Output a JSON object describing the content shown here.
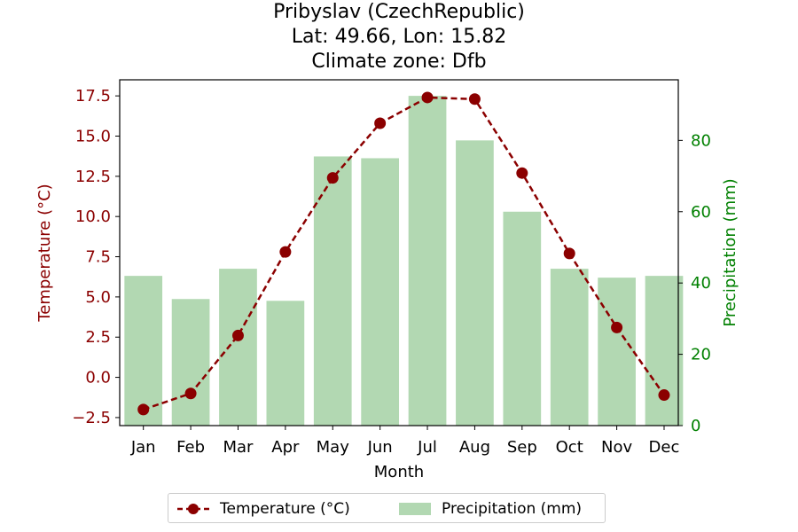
{
  "chart_data": {
    "type": "bar",
    "title_lines": [
      "Pribyslav (CzechRepublic)",
      "Lat: 49.66, Lon: 15.82",
      "Climate zone: Dfb"
    ],
    "categories": [
      "Jan",
      "Feb",
      "Mar",
      "Apr",
      "May",
      "Jun",
      "Jul",
      "Aug",
      "Sep",
      "Oct",
      "Nov",
      "Dec"
    ],
    "xlabel": "Month",
    "series": [
      {
        "name": "Temperature (°C)",
        "type": "line",
        "axis": "left",
        "values": [
          -2.0,
          -1.0,
          2.6,
          7.8,
          12.4,
          15.8,
          17.4,
          17.3,
          12.7,
          7.7,
          3.1,
          -1.1
        ]
      },
      {
        "name": "Precipitation (mm)",
        "type": "bar",
        "axis": "right",
        "values": [
          42,
          35.5,
          44,
          35,
          75.5,
          75,
          92.5,
          80,
          60,
          44,
          41.5,
          42
        ]
      }
    ],
    "left_axis": {
      "label": "Temperature (°C)",
      "ylim": [
        -3.0,
        18.5
      ],
      "ticks": [
        -2.5,
        0.0,
        2.5,
        5.0,
        7.5,
        10.0,
        12.5,
        15.0,
        17.5
      ],
      "tick_labels": [
        "−2.5",
        "0.0",
        "2.5",
        "5.0",
        "7.5",
        "10.0",
        "12.5",
        "15.0",
        "17.5"
      ]
    },
    "right_axis": {
      "label": "Precipitation (mm)",
      "ylim": [
        0,
        97
      ],
      "ticks": [
        0,
        20,
        40,
        60,
        80
      ],
      "tick_labels": [
        "0",
        "20",
        "40",
        "60",
        "80"
      ]
    },
    "legend_placement": "bottom-center",
    "grid": false
  },
  "colors": {
    "temperature": "#8b0000",
    "precipitation_bar": "#b2d8b2",
    "precipitation_axis": "#008000"
  }
}
